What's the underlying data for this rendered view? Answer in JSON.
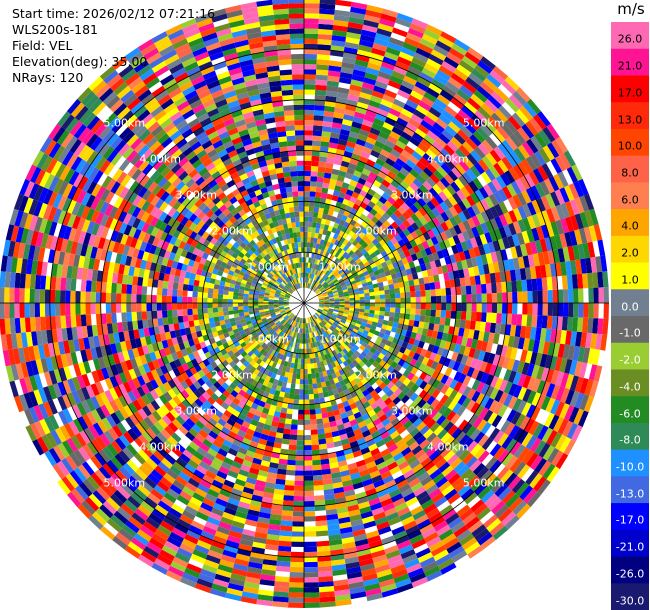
{
  "header": {
    "start_time": "Start time: 2026/02/12 07:21:16",
    "instrument": "WLS200s-181",
    "field": "Field: VEL",
    "elevation": "Elevation(deg): 35.00",
    "nrays": "NRays: 120"
  },
  "chart_data": {
    "type": "heatmap",
    "projection": "polar-ppi",
    "field": "VEL",
    "units": "m/s",
    "nrays": 120,
    "range_rings_km": [
      1,
      2,
      3,
      4,
      5
    ],
    "range_labels": [
      "1.00km",
      "2.00km",
      "3.00km",
      "4.00km",
      "5.00km"
    ],
    "max_range_km": 6.0,
    "colorbar": {
      "title": "m/s",
      "ticks": [
        "26.0",
        "21.0",
        "17.0",
        "13.0",
        "10.0",
        "8.0",
        "6.0",
        "4.0",
        "2.0",
        "1.0",
        "0.0",
        "-1.0",
        "-2.0",
        "-4.0",
        "-6.0",
        "-8.0",
        "-10.0",
        "-13.0",
        "-17.0",
        "-21.0",
        "-26.0",
        "-30.0"
      ],
      "colors": [
        "#ff69b4",
        "#ff1493",
        "#ff0000",
        "#ff2a0a",
        "#ff4500",
        "#ff6347",
        "#ff7f50",
        "#ffa500",
        "#ffd700",
        "#ffff00",
        "#708090",
        "#696969",
        "#9acd32",
        "#6b8e23",
        "#228b22",
        "#2e8b57",
        "#1e90ff",
        "#4169e1",
        "#0000ff",
        "#0000cd",
        "#000080",
        "#191970"
      ]
    }
  }
}
